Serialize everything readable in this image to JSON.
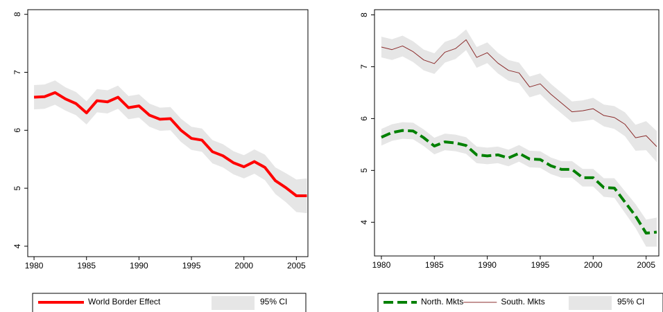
{
  "chart_data": [
    {
      "type": "line",
      "x": [
        1980,
        1981,
        1982,
        1983,
        1984,
        1985,
        1986,
        1987,
        1988,
        1989,
        1990,
        1991,
        1992,
        1993,
        1994,
        1995,
        1996,
        1997,
        1998,
        1999,
        2000,
        2001,
        2002,
        2003,
        2004,
        2005,
        2006
      ],
      "xlim": [
        1979.4,
        2006.1
      ],
      "xticks": [
        1980,
        1985,
        1990,
        1995,
        2000,
        2005
      ],
      "ylim": [
        3.82,
        8.08
      ],
      "yticks": [
        4,
        5,
        6,
        7,
        8
      ],
      "ci_label": "95% CI",
      "ci_color": "#e6e6e6",
      "series": [
        {
          "name": "World Border Effect",
          "color": "#ff0000",
          "style": "solid-thick",
          "values": [
            6.57,
            6.58,
            6.65,
            6.54,
            6.46,
            6.3,
            6.51,
            6.49,
            6.57,
            6.39,
            6.42,
            6.26,
            6.19,
            6.2,
            6.0,
            5.86,
            5.83,
            5.63,
            5.56,
            5.44,
            5.37,
            5.46,
            5.36,
            5.13,
            5.01,
            4.87,
            4.87
          ],
          "ci_lower": [
            6.36,
            6.37,
            6.44,
            6.34,
            6.26,
            6.1,
            6.31,
            6.29,
            6.37,
            6.19,
            6.22,
            6.06,
            5.99,
            6.0,
            5.8,
            5.66,
            5.63,
            5.43,
            5.36,
            5.24,
            5.17,
            5.25,
            5.14,
            4.9,
            4.76,
            4.59,
            4.57
          ],
          "ci_upper": [
            6.78,
            6.79,
            6.86,
            6.74,
            6.66,
            6.5,
            6.71,
            6.69,
            6.77,
            6.59,
            6.62,
            6.46,
            6.39,
            6.4,
            6.2,
            6.06,
            6.03,
            5.83,
            5.76,
            5.64,
            5.57,
            5.67,
            5.58,
            5.36,
            5.26,
            5.15,
            5.17
          ]
        }
      ]
    },
    {
      "type": "line",
      "x": [
        1980,
        1981,
        1982,
        1983,
        1984,
        1985,
        1986,
        1987,
        1988,
        1989,
        1990,
        1991,
        1992,
        1993,
        1994,
        1995,
        1996,
        1997,
        1998,
        1999,
        2000,
        2001,
        2002,
        2003,
        2004,
        2005,
        2006
      ],
      "xlim": [
        1979.35,
        2006.2
      ],
      "xticks": [
        1980,
        1985,
        1990,
        1995,
        2000,
        2005
      ],
      "ylim": [
        3.35,
        8.1
      ],
      "yticks": [
        4,
        5,
        6,
        7,
        8
      ],
      "ci_label": "95% CI",
      "ci_color": "#e6e6e6",
      "series": [
        {
          "name": "North. Mkts",
          "color": "#008000",
          "style": "dashed-thick",
          "values": [
            5.64,
            5.73,
            5.77,
            5.76,
            5.63,
            5.47,
            5.55,
            5.53,
            5.48,
            5.3,
            5.28,
            5.3,
            5.24,
            5.33,
            5.22,
            5.21,
            5.09,
            5.02,
            5.02,
            4.86,
            4.86,
            4.67,
            4.66,
            4.39,
            4.12,
            3.79,
            3.81
          ],
          "ci_lower": [
            5.48,
            5.57,
            5.61,
            5.6,
            5.47,
            5.31,
            5.39,
            5.37,
            5.32,
            5.14,
            5.12,
            5.14,
            5.08,
            5.17,
            5.06,
            5.05,
            4.93,
            4.86,
            4.86,
            4.69,
            4.69,
            4.49,
            4.47,
            4.18,
            3.89,
            3.53,
            3.53
          ],
          "ci_upper": [
            5.8,
            5.89,
            5.93,
            5.92,
            5.79,
            5.63,
            5.71,
            5.69,
            5.64,
            5.46,
            5.44,
            5.46,
            5.4,
            5.49,
            5.38,
            5.37,
            5.25,
            5.18,
            5.18,
            5.03,
            5.03,
            4.85,
            4.85,
            4.6,
            4.35,
            4.05,
            4.09
          ]
        },
        {
          "name": "South. Mkts",
          "color": "#8b2b2b",
          "style": "solid-thin",
          "values": [
            7.38,
            7.33,
            7.4,
            7.29,
            7.13,
            7.06,
            7.28,
            7.35,
            7.52,
            7.18,
            7.27,
            7.07,
            6.93,
            6.88,
            6.61,
            6.67,
            6.47,
            6.3,
            6.13,
            6.15,
            6.19,
            6.06,
            6.02,
            5.89,
            5.63,
            5.67,
            5.46
          ],
          "ci_lower": [
            7.18,
            7.13,
            7.2,
            7.09,
            6.93,
            6.86,
            7.08,
            7.15,
            7.32,
            6.98,
            7.07,
            6.87,
            6.73,
            6.68,
            6.41,
            6.47,
            6.27,
            6.1,
            5.93,
            5.95,
            5.98,
            5.85,
            5.8,
            5.66,
            5.38,
            5.39,
            5.16
          ],
          "ci_upper": [
            7.58,
            7.53,
            7.6,
            7.49,
            7.33,
            7.26,
            7.48,
            7.55,
            7.72,
            7.38,
            7.47,
            7.27,
            7.13,
            7.08,
            6.81,
            6.87,
            6.67,
            6.5,
            6.33,
            6.35,
            6.4,
            6.27,
            6.24,
            6.12,
            5.88,
            5.95,
            5.76
          ]
        }
      ]
    }
  ]
}
